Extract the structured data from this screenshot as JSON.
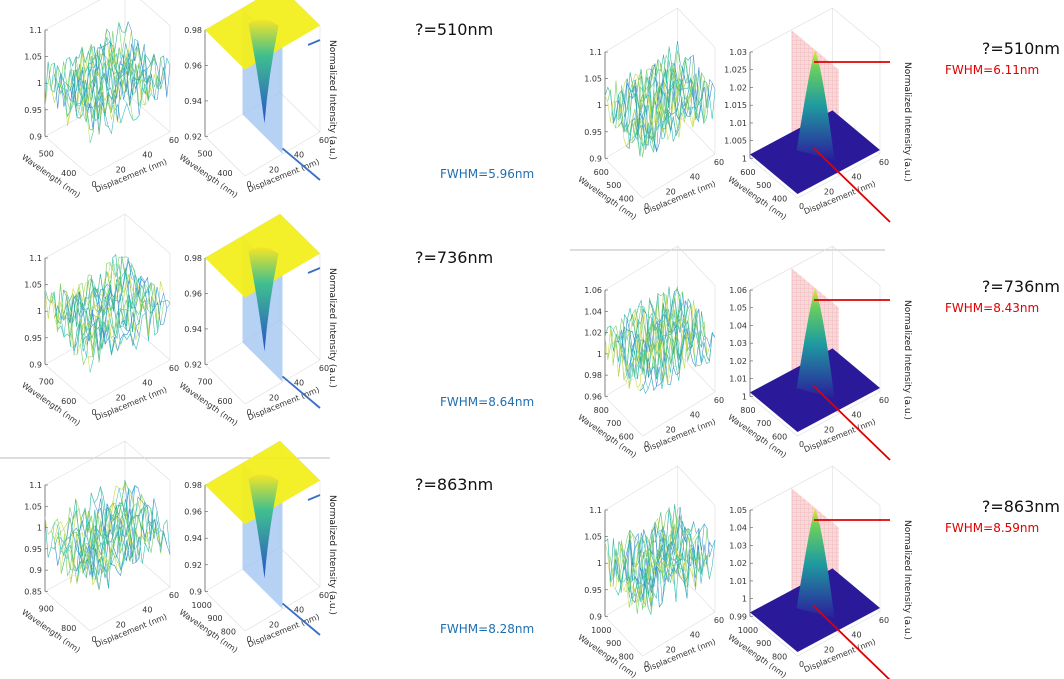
{
  "panels": [
    {
      "lambda": "?=510nm",
      "fwhm": "FWHM=5.96nm",
      "intensity_label": "Normalized Intensity (a.u.)",
      "plot_a": {
        "zticks": [
          "1.1",
          "1.05",
          "1",
          "0.95",
          "0.9"
        ],
        "wavelength_label": "Wavelength (nm)",
        "wavelength_ticks": [
          "400",
          "500"
        ],
        "displacement_label": "Displacement (nm)",
        "displacement_ticks": [
          "0",
          "20",
          "40",
          "60"
        ]
      },
      "plot_b": {
        "zticks": [
          "0.98",
          "0.96",
          "0.94",
          "0.92"
        ],
        "wavelength_label": "Wavelength (nm)",
        "wavelength_ticks": [
          "400",
          "500"
        ],
        "displacement_label": "Displacement (nm)",
        "displacement_ticks": [
          "0",
          "20",
          "40",
          "60"
        ]
      }
    },
    {
      "lambda": "?=736nm",
      "fwhm": "FWHM=8.64nm",
      "intensity_label": "Normalized Intensity (a.u.)",
      "plot_a": {
        "zticks": [
          "1.1",
          "1.05",
          "1",
          "0.95",
          "0.9"
        ],
        "wavelength_label": "Wavelength (nm)",
        "wavelength_ticks": [
          "600",
          "700"
        ],
        "displacement_label": "Displacement (nm)",
        "displacement_ticks": [
          "0",
          "20",
          "40",
          "60"
        ]
      },
      "plot_b": {
        "zticks": [
          "0.98",
          "0.96",
          "0.94",
          "0.92"
        ],
        "wavelength_label": "Wavelength (nm)",
        "wavelength_ticks": [
          "600",
          "700"
        ],
        "displacement_label": "Displacement (nm)",
        "displacement_ticks": [
          "0",
          "20",
          "40",
          "60"
        ]
      }
    },
    {
      "lambda": "?=863nm",
      "fwhm": "FWHM=8.28nm",
      "intensity_label": "Normalized Intensity (a.u.)",
      "plot_a": {
        "zticks": [
          "1.1",
          "1.05",
          "1",
          "0.95",
          "0.9",
          "0.85"
        ],
        "wavelength_label": "Wavelength (nm)",
        "wavelength_ticks": [
          "800",
          "900"
        ],
        "displacement_label": "Displacement (nm)",
        "displacement_ticks": [
          "0",
          "20",
          "40",
          "60"
        ]
      },
      "plot_b": {
        "zticks": [
          "0.98",
          "0.96",
          "0.94",
          "0.92",
          "0.9"
        ],
        "wavelength_label": "Wavelength (nm)",
        "wavelength_ticks": [
          "800",
          "900",
          "1000"
        ],
        "displacement_label": "Displacement (nm)",
        "displacement_ticks": [
          "0",
          "20",
          "40",
          "60"
        ]
      }
    },
    {
      "lambda": "?=510nm",
      "fwhm": "FWHM=6.11nm",
      "intensity_label": "Normalized Intensity (a.u.)",
      "plot_a": {
        "zticks": [
          "1.1",
          "1.05",
          "1",
          "0.95",
          "0.9"
        ],
        "wavelength_label": "Wavelength (nm)",
        "wavelength_ticks": [
          "400",
          "500",
          "600"
        ],
        "displacement_label": "Displacement (nm)",
        "displacement_ticks": [
          "0",
          "20",
          "40",
          "60"
        ]
      },
      "plot_b": {
        "zticks": [
          "1.03",
          "1.025",
          "1.02",
          "1.015",
          "1.01",
          "1.005",
          "1"
        ],
        "wavelength_label": "Wavelength (nm)",
        "wavelength_ticks": [
          "400",
          "500",
          "600"
        ],
        "displacement_label": "Displacement (nm)",
        "displacement_ticks": [
          "0",
          "20",
          "40",
          "60"
        ]
      }
    },
    {
      "lambda": "?=736nm",
      "fwhm": "FWHM=8.43nm",
      "intensity_label": "Normalized Intensity (a.u.)",
      "plot_a": {
        "zticks": [
          "1.06",
          "1.04",
          "1.02",
          "1",
          "0.98",
          "0.96"
        ],
        "wavelength_label": "Wavelength (nm)",
        "wavelength_ticks": [
          "600",
          "700",
          "800"
        ],
        "displacement_label": "Displacement (nm)",
        "displacement_ticks": [
          "0",
          "20",
          "40",
          "60"
        ]
      },
      "plot_b": {
        "zticks": [
          "1.06",
          "1.05",
          "1.04",
          "1.03",
          "1.02",
          "1.01",
          "1"
        ],
        "wavelength_label": "Wavelength (nm)",
        "wavelength_ticks": [
          "600",
          "700",
          "800"
        ],
        "displacement_label": "Displacement (nm)",
        "displacement_ticks": [
          "0",
          "20",
          "40",
          "60"
        ]
      }
    },
    {
      "lambda": "?=863nm",
      "fwhm": "FWHM=8.59nm",
      "intensity_label": "Normalized Intensity (a.u.)",
      "plot_a": {
        "zticks": [
          "1.1",
          "1.05",
          "1",
          "0.95",
          "0.9"
        ],
        "wavelength_label": "Wavelength (nm)",
        "wavelength_ticks": [
          "800",
          "900",
          "1000"
        ],
        "displacement_label": "Displacement (nm)",
        "displacement_ticks": [
          "0",
          "20",
          "40",
          "60"
        ]
      },
      "plot_b": {
        "zticks": [
          "1.05",
          "1.04",
          "1.03",
          "1.02",
          "1.01",
          "1",
          "0.99"
        ],
        "wavelength_label": "Wavelength (nm)",
        "wavelength_ticks": [
          "800",
          "900",
          "1000"
        ],
        "displacement_label": "Displacement (nm)",
        "displacement_ticks": [
          "0",
          "20",
          "40",
          "60"
        ]
      }
    }
  ]
}
